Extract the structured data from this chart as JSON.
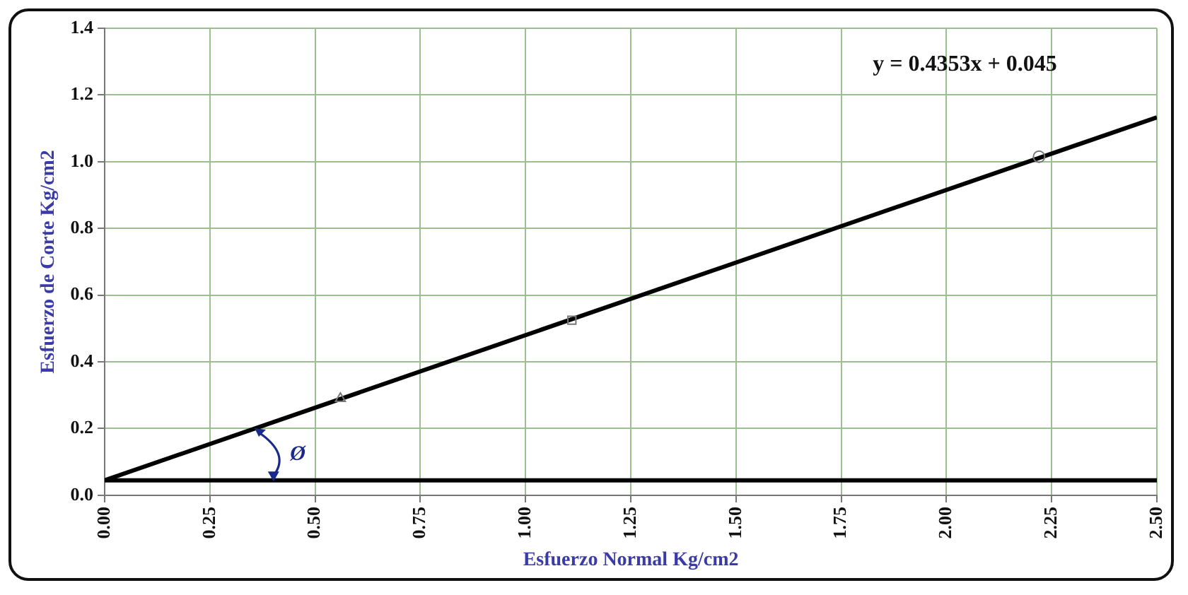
{
  "chart_data": {
    "type": "scatter",
    "xlabel": "Esfuerzo Normal Kg/cm2",
    "ylabel": "Esfuerzo de Corte Kg/cm2",
    "annotations": [
      "y = 0.4353x + 0.045",
      {
        "text": "Ø",
        "x": 0.4,
        "y": 0.045
      }
    ],
    "series": [
      {
        "type": "scatter",
        "marker": "triangle",
        "color": "#777777",
        "x": [
          0.56
        ],
        "values": [
          0.29
        ]
      },
      {
        "type": "scatter",
        "marker": "square",
        "color": "#777777",
        "x": [
          1.11
        ],
        "values": [
          0.525
        ]
      },
      {
        "type": "scatter",
        "marker": "circle",
        "color": "#777777",
        "x": [
          2.22
        ],
        "values": [
          1.015
        ]
      },
      {
        "type": "line",
        "marker": "none",
        "color": "#000000",
        "x": [
          0,
          2.5
        ],
        "values": [
          0.045,
          1.133
        ]
      }
    ],
    "ref_lines": [
      {
        "axis": "y",
        "value": 0.045,
        "color": "#000000"
      }
    ],
    "xlim": [
      0,
      2.5
    ],
    "xticks": [
      {
        "value": 0,
        "label": "0.00"
      },
      {
        "value": 0.25,
        "label": "0.25"
      },
      {
        "value": 0.5,
        "label": "0.50"
      },
      {
        "value": 0.75,
        "label": "0.75"
      },
      {
        "value": 1,
        "label": "1.00"
      },
      {
        "value": 1.25,
        "label": "1.25"
      },
      {
        "value": 1.5,
        "label": "1.50"
      },
      {
        "value": 1.75,
        "label": "1.75"
      },
      {
        "value": 2,
        "label": "2.00"
      },
      {
        "value": 2.25,
        "label": "2.25"
      },
      {
        "value": 2.5,
        "label": "2.50"
      }
    ],
    "ylim": [
      0,
      1.4
    ],
    "yticks": [
      {
        "value": 0,
        "label": "0.0"
      },
      {
        "value": 0.2,
        "label": "0.2"
      },
      {
        "value": 0.4,
        "label": "0.4"
      },
      {
        "value": 0.6,
        "label": "0.6"
      },
      {
        "value": 0.8,
        "label": "0.8"
      },
      {
        "value": 1,
        "label": "1.0"
      },
      {
        "value": 1.2,
        "label": "1.2"
      },
      {
        "value": 1.4,
        "label": "1.4"
      }
    ],
    "grid": true,
    "legend": false
  }
}
